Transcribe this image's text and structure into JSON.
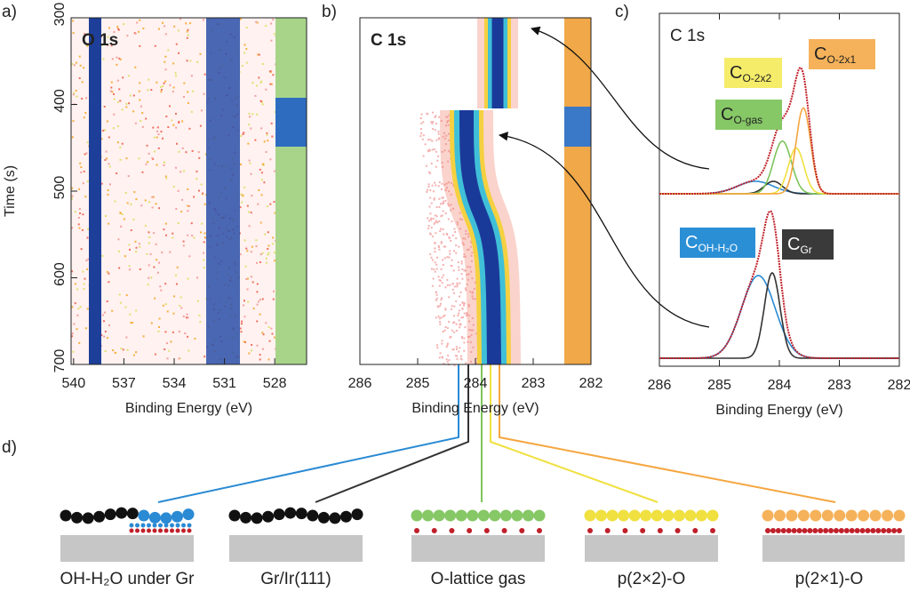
{
  "panels": [
    {
      "label": "a)",
      "title": "O 1s",
      "xlabel": "Binding Energy (eV)",
      "ylabel": "Time (s)",
      "xlim": [
        540.15,
        526.1
      ],
      "xticks": [
        540,
        537,
        534,
        531,
        528
      ],
      "ylim": [
        300,
        700
      ],
      "yticks": [
        300,
        400,
        500,
        600,
        700
      ]
    },
    {
      "label": "b)",
      "title": "C 1s",
      "xlabel": "Binding Energy (eV)",
      "xlim": [
        286,
        282
      ],
      "xticks": [
        286,
        285,
        284,
        283,
        282
      ]
    },
    {
      "label": "c)",
      "title": "C 1s",
      "xlabel": "Binding Energy (eV)",
      "xlim": [
        286,
        282
      ],
      "xticks": [
        286,
        285,
        284,
        283,
        282
      ],
      "spectra": [
        {
          "components": [
            {
              "color": "#2a8ad4",
              "center": 284.4,
              "width": 0.3,
              "amplitude": 0.09
            },
            {
              "color": "#333333",
              "center": 284.1,
              "width": 0.15,
              "amplitude": 0.09
            },
            {
              "color": "#7cc45a",
              "center": 283.95,
              "width": 0.15,
              "amplitude": 0.38
            },
            {
              "color": "#f0e040",
              "center": 283.72,
              "width": 0.13,
              "amplitude": 0.33
            },
            {
              "color": "#f5a640",
              "center": 283.6,
              "width": 0.12,
              "amplitude": 0.62
            }
          ]
        },
        {
          "components": [
            {
              "color": "#2a8ad4",
              "center": 284.35,
              "width": 0.28,
              "amplitude": 0.6
            },
            {
              "color": "#333333",
              "center": 284.12,
              "width": 0.13,
              "amplitude": 0.62
            }
          ]
        }
      ],
      "labels": [
        {
          "main": "C",
          "sub": "O-2x2",
          "color": "#f5ec6a"
        },
        {
          "main": "C",
          "sub": "O-2x1",
          "color": "#f5b25a"
        },
        {
          "main": "C",
          "sub": "O-gas",
          "color": "#86c766"
        },
        {
          "main": "C",
          "sub": "OH-H₂O",
          "color": "#2b8fd6"
        },
        {
          "main": "C",
          "sub": "Gr",
          "color": "#3a3a3a"
        }
      ]
    }
  ],
  "panel_d": {
    "label": "d)",
    "structures": [
      "OH-H₂O under Gr",
      "Gr/Ir(111)",
      "O-lattice gas",
      "p(2×2)-O",
      "p(2×1)-O"
    ]
  }
}
